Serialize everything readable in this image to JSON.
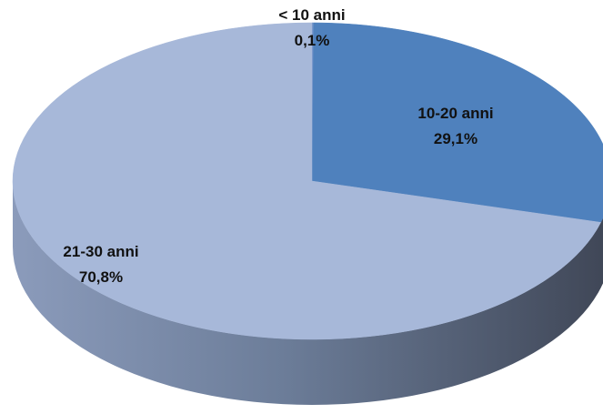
{
  "chart_data": {
    "type": "pie",
    "title": "",
    "style": "3d",
    "slices": [
      {
        "label": "< 10 anni",
        "value": 0.1,
        "value_label": "0,1%",
        "color": "#6b8fc7"
      },
      {
        "label": "10-20 anni",
        "value": 29.1,
        "value_label": "29,1%",
        "color": "#4f81bd"
      },
      {
        "label": "21-30 anni",
        "value": 70.8,
        "value_label": "70,8%",
        "color": "#a7b8d9"
      }
    ],
    "legend": "none",
    "data_labels": "category and percentage"
  }
}
